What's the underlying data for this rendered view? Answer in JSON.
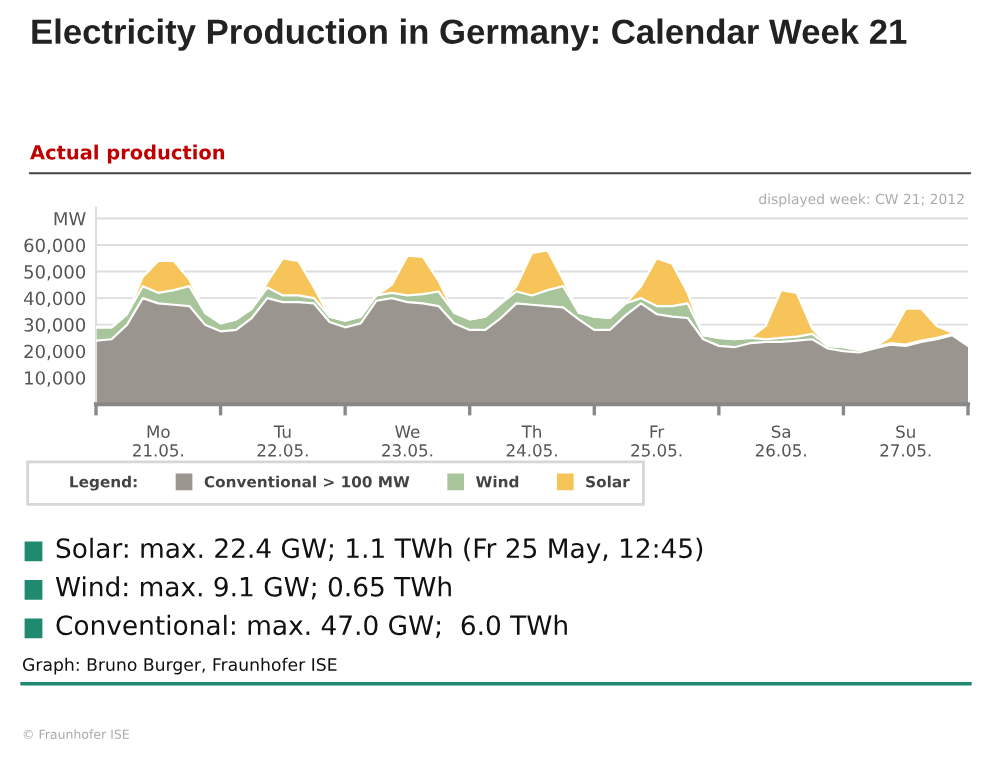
{
  "chart_data": {
    "type": "area",
    "stacked": true,
    "title": "Electricity Production in Germany: Calendar Week 21",
    "subtitle": "Actual production",
    "annotations": [
      "displayed week: CW 21; 2012",
      "Solar: max. 22.4 GW; 1.1 TWh (Fr 25 May, 12:45)",
      "Wind: max. 9.1 GW; 0.65 TWh",
      "Conventional: max. 47.0 GW;  6.0 TWh",
      "Graph: Bruno Burger, Fraunhofer ISE",
      "© Fraunhofer ISE"
    ],
    "x": [
      "2012-05-21T00:00",
      "2012-05-21T03:00",
      "2012-05-21T06:00",
      "2012-05-21T09:00",
      "2012-05-21T12:00",
      "2012-05-21T15:00",
      "2012-05-21T18:00",
      "2012-05-21T21:00",
      "2012-05-22T00:00",
      "2012-05-22T03:00",
      "2012-05-22T06:00",
      "2012-05-22T09:00",
      "2012-05-22T12:00",
      "2012-05-22T15:00",
      "2012-05-22T18:00",
      "2012-05-22T21:00",
      "2012-05-23T00:00",
      "2012-05-23T03:00",
      "2012-05-23T06:00",
      "2012-05-23T09:00",
      "2012-05-23T12:00",
      "2012-05-23T15:00",
      "2012-05-23T18:00",
      "2012-05-23T21:00",
      "2012-05-24T00:00",
      "2012-05-24T03:00",
      "2012-05-24T06:00",
      "2012-05-24T09:00",
      "2012-05-24T12:00",
      "2012-05-24T15:00",
      "2012-05-24T18:00",
      "2012-05-24T21:00",
      "2012-05-25T00:00",
      "2012-05-25T03:00",
      "2012-05-25T06:00",
      "2012-05-25T09:00",
      "2012-05-25T12:00",
      "2012-05-25T15:00",
      "2012-05-25T18:00",
      "2012-05-25T21:00",
      "2012-05-26T00:00",
      "2012-05-26T03:00",
      "2012-05-26T06:00",
      "2012-05-26T09:00",
      "2012-05-26T12:00",
      "2012-05-26T15:00",
      "2012-05-26T18:00",
      "2012-05-26T21:00",
      "2012-05-27T00:00",
      "2012-05-27T03:00",
      "2012-05-27T06:00",
      "2012-05-27T09:00",
      "2012-05-27T12:00",
      "2012-05-27T15:00",
      "2012-05-27T18:00",
      "2012-05-27T21:00",
      "2012-05-28T00:00"
    ],
    "series": [
      {
        "name": "Conventional > 100 MW",
        "color": "#9b9590",
        "values": [
          24000,
          24500,
          30000,
          40000,
          38000,
          37500,
          37000,
          30000,
          27500,
          28000,
          32500,
          40000,
          38500,
          38500,
          38000,
          31000,
          29000,
          30500,
          39000,
          40000,
          38500,
          38000,
          37000,
          30500,
          28000,
          28000,
          32500,
          38000,
          37500,
          37000,
          36500,
          32000,
          28000,
          28000,
          33500,
          38000,
          34000,
          33000,
          32500,
          24500,
          22000,
          21500,
          23000,
          23500,
          23500,
          24000,
          24500,
          21000,
          20000,
          19500,
          21000,
          22500,
          22000,
          23500,
          24500,
          26000,
          22000
        ]
      },
      {
        "name": "Wind",
        "color": "#a8c49a",
        "values": [
          5000,
          4500,
          4000,
          4500,
          4000,
          5500,
          7500,
          4500,
          3000,
          4000,
          3500,
          4000,
          2500,
          2500,
          2000,
          2000,
          2500,
          2500,
          2000,
          2000,
          2500,
          3500,
          5500,
          4000,
          4000,
          5000,
          5500,
          4500,
          3500,
          6000,
          8000,
          2500,
          5000,
          4500,
          4500,
          2000,
          3000,
          4000,
          5500,
          1500,
          3000,
          3000,
          2000,
          1000,
          1500,
          1500,
          2000,
          1000,
          1500,
          1000,
          500,
          500,
          500,
          500,
          500,
          500,
          500
        ]
      },
      {
        "name": "Solar",
        "color": "#f7c45a",
        "values": [
          0,
          0,
          0,
          3500,
          12000,
          11000,
          2500,
          0,
          0,
          0,
          0,
          2000,
          14000,
          13000,
          4000,
          0,
          0,
          0,
          0,
          3000,
          15000,
          14000,
          4000,
          0,
          0,
          0,
          0,
          2000,
          16000,
          15000,
          2500,
          0,
          0,
          0,
          0,
          4500,
          18000,
          16000,
          4000,
          0,
          0,
          0,
          0,
          5000,
          18000,
          16500,
          2000,
          0,
          0,
          0,
          0,
          2500,
          13500,
          12000,
          4500,
          500,
          0
        ]
      }
    ],
    "xlim": [
      "2012-05-21T00:00",
      "2012-05-28T00:00"
    ],
    "xticks": [
      {
        "value": "2012-05-21T00:00",
        "label": null
      },
      {
        "value": "2012-05-21T12:00",
        "label": "Mo\n21.05."
      },
      {
        "value": "2012-05-22T00:00",
        "label": null
      },
      {
        "value": "2012-05-22T12:00",
        "label": "Tu\n22.05."
      },
      {
        "value": "2012-05-23T00:00",
        "label": null
      },
      {
        "value": "2012-05-23T12:00",
        "label": "We\n23.05."
      },
      {
        "value": "2012-05-24T00:00",
        "label": null
      },
      {
        "value": "2012-05-24T12:00",
        "label": "Th\n24.05."
      },
      {
        "value": "2012-05-25T00:00",
        "label": null
      },
      {
        "value": "2012-05-25T12:00",
        "label": "Fr\n25.05."
      },
      {
        "value": "2012-05-26T00:00",
        "label": null
      },
      {
        "value": "2012-05-26T12:00",
        "label": "Sa\n26.05."
      },
      {
        "value": "2012-05-27T00:00",
        "label": null
      },
      {
        "value": "2012-05-27T12:00",
        "label": "Su\n27.05."
      },
      {
        "value": "2012-05-28T00:00",
        "label": null
      }
    ],
    "ylim": [
      0,
      74000
    ],
    "yticks": [
      {
        "value": 10000,
        "label": "10,000"
      },
      {
        "value": 20000,
        "label": "20,000"
      },
      {
        "value": 30000,
        "label": "30,000"
      },
      {
        "value": 40000,
        "label": "40,000"
      },
      {
        "value": 50000,
        "label": "50,000"
      },
      {
        "value": 60000,
        "label": "60,000"
      },
      {
        "value": 70000,
        "label": "MW"
      }
    ],
    "grid": "y",
    "legend": "bottom",
    "legend_title": "Legend:"
  }
}
